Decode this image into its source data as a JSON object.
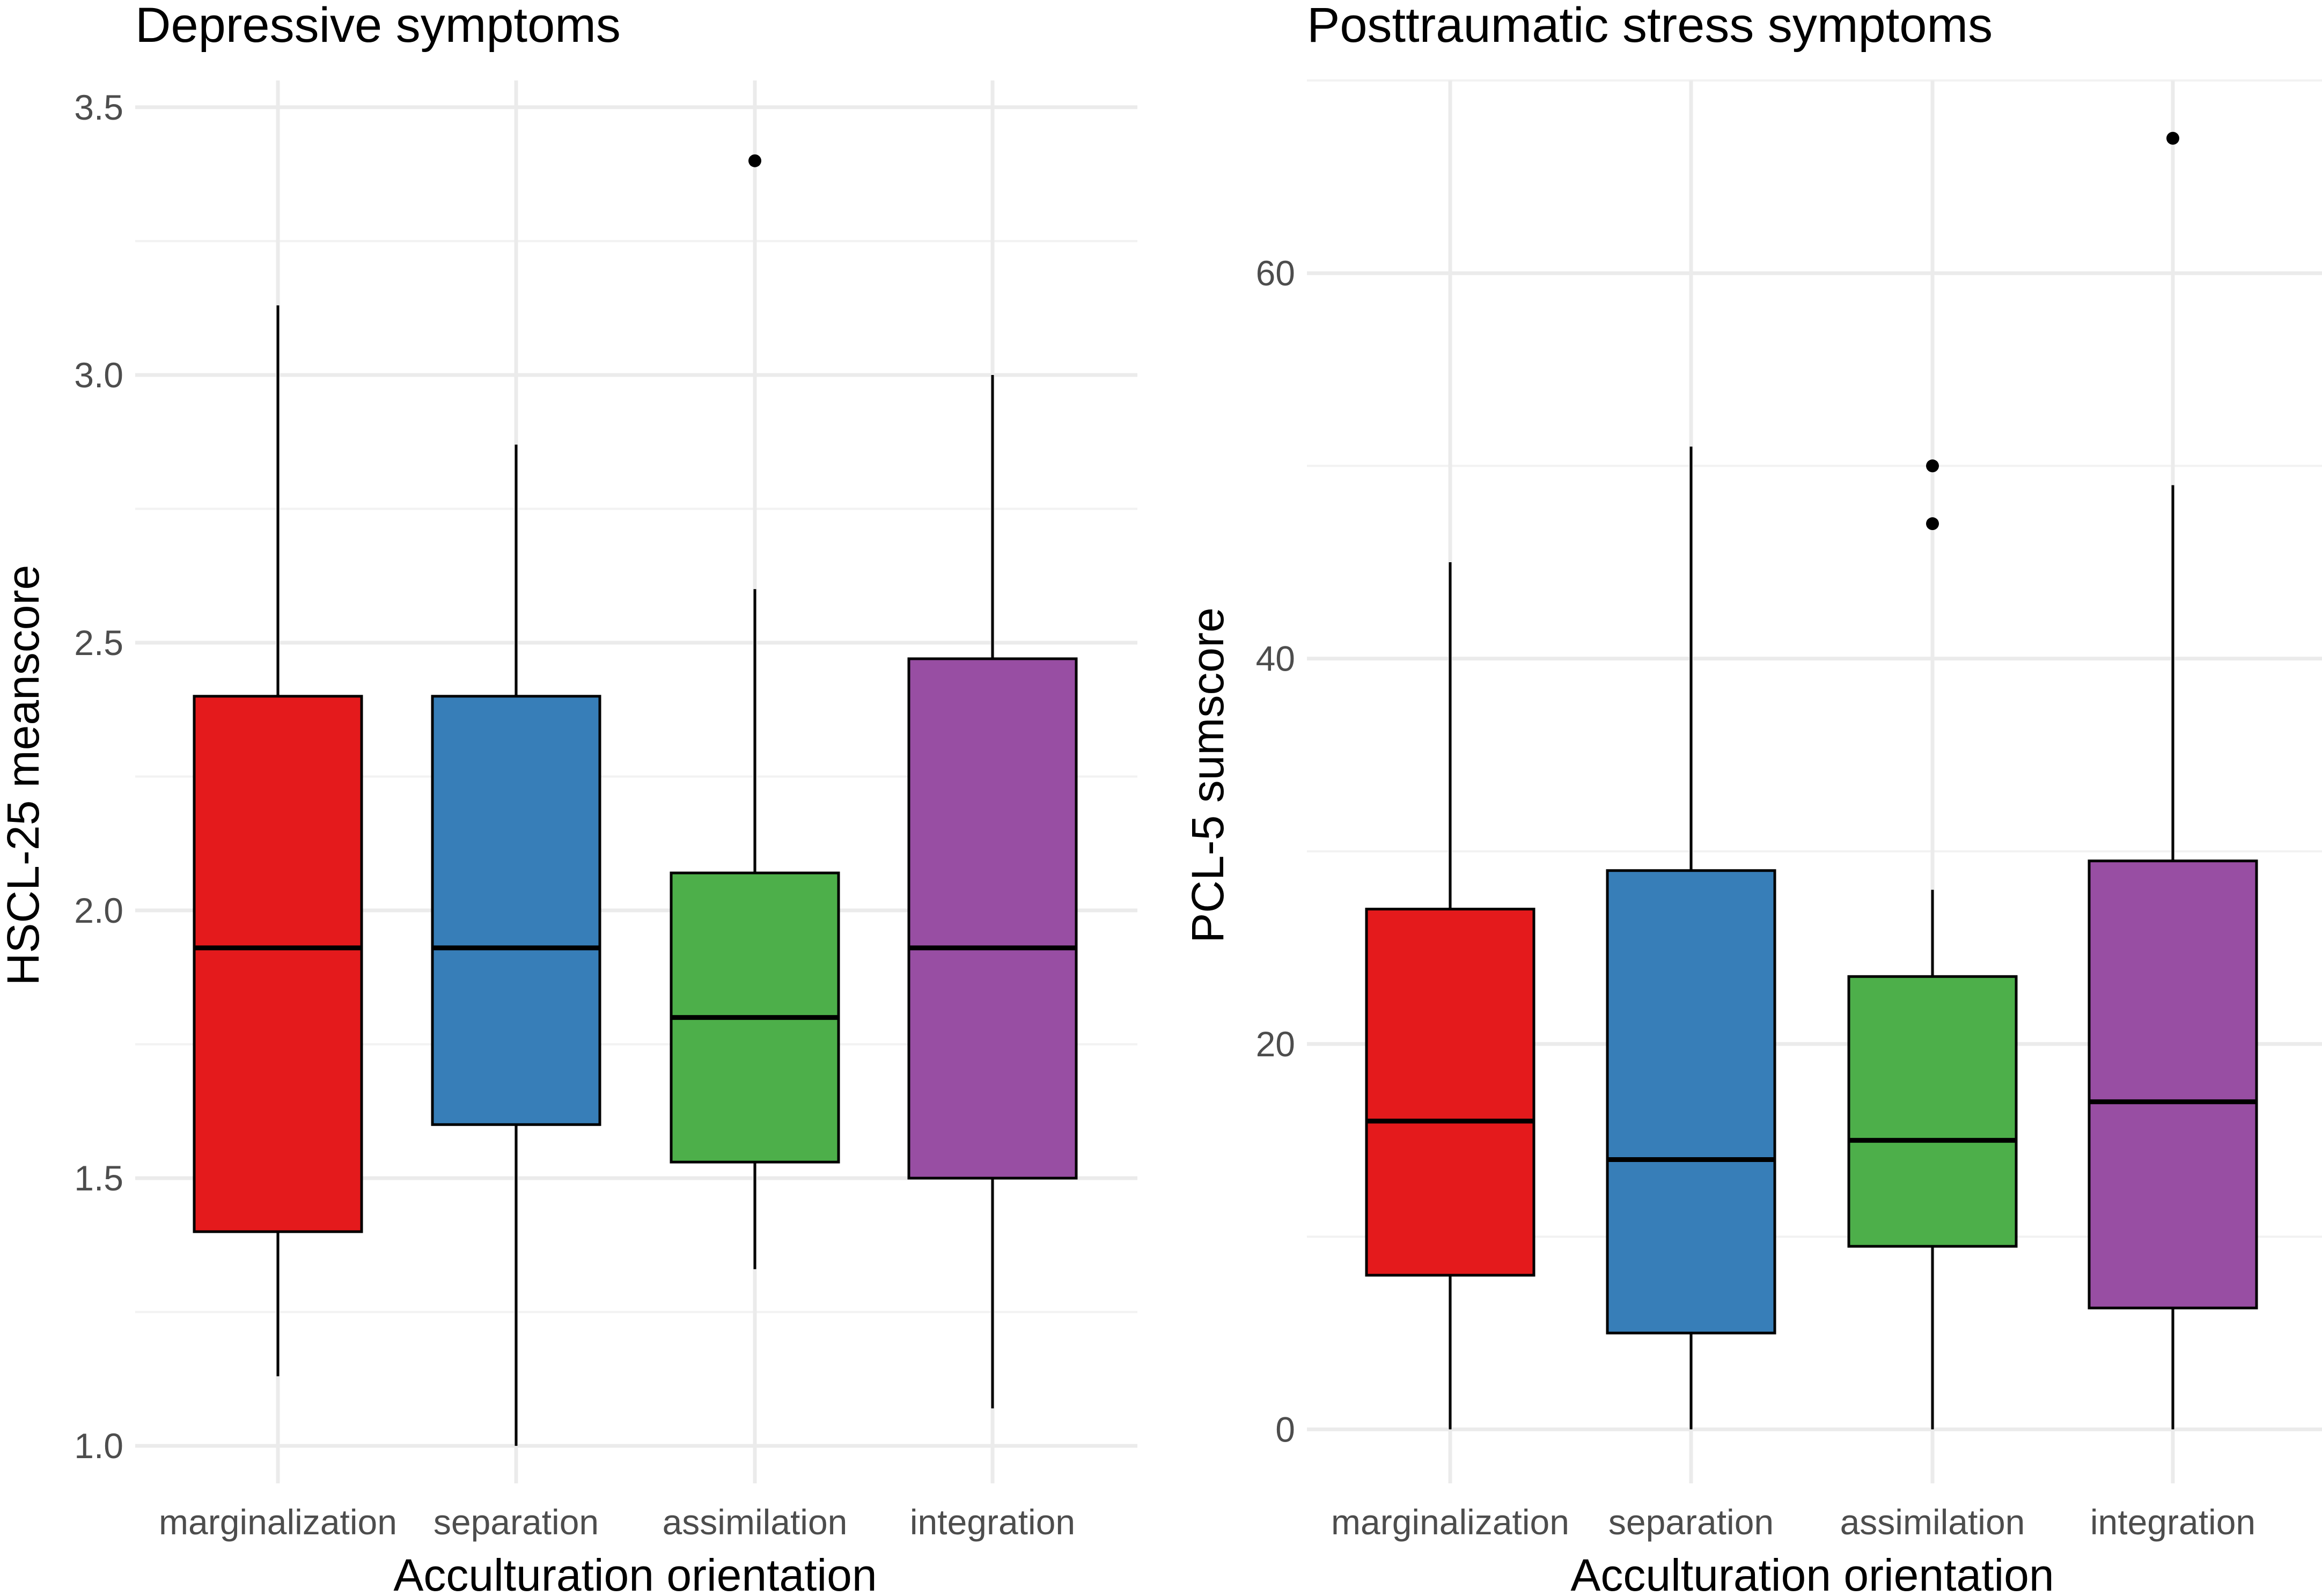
{
  "chart_data": [
    {
      "type": "boxplot",
      "title": "Depressive symptoms",
      "xlabel": "Acculturation orientation",
      "ylabel": "HSCL-25 meanscore",
      "categories": [
        "marginalization",
        "separation",
        "assimilation",
        "integration"
      ],
      "ylim": [
        0.93,
        3.55
      ],
      "yticks": [
        1.0,
        1.5,
        2.0,
        2.5,
        3.0,
        3.5
      ],
      "ytick_labels": [
        "1.0",
        "1.5",
        "2.0",
        "2.5",
        "3.0",
        "3.5"
      ],
      "yminor": [
        1.25,
        1.75,
        2.25,
        2.75,
        3.25
      ],
      "boxes": [
        {
          "group": "marginalization",
          "min": 1.13,
          "q1": 1.4,
          "median": 1.93,
          "q3": 2.4,
          "max": 3.13,
          "outliers": [],
          "color": "#e41a1c"
        },
        {
          "group": "separation",
          "min": 1.0,
          "q1": 1.6,
          "median": 1.93,
          "q3": 2.4,
          "max": 2.87,
          "outliers": [],
          "color": "#377eb8"
        },
        {
          "group": "assimilation",
          "min": 1.33,
          "q1": 1.53,
          "median": 1.8,
          "q3": 2.07,
          "max": 2.6,
          "outliers": [
            3.4
          ],
          "color": "#4daf4a"
        },
        {
          "group": "integration",
          "min": 1.07,
          "q1": 1.5,
          "median": 1.93,
          "q3": 2.47,
          "max": 3.0,
          "outliers": [],
          "color": "#984ea3"
        }
      ]
    },
    {
      "type": "boxplot",
      "title": "Posttraumatic stress symptoms",
      "xlabel": "Acculturation orientation",
      "ylabel": "PCL-5 sumscore",
      "categories": [
        "marginalization",
        "separation",
        "assimilation",
        "integration"
      ],
      "ylim": [
        -2.8,
        70
      ],
      "yticks": [
        0,
        20,
        40,
        60
      ],
      "ytick_labels": [
        "0",
        "20",
        "40",
        "60"
      ],
      "yminor": [
        10,
        30,
        50,
        70
      ],
      "boxes": [
        {
          "group": "marginalization",
          "min": 0,
          "q1": 8,
          "median": 16,
          "q3": 27,
          "max": 45,
          "outliers": [],
          "color": "#e41a1c"
        },
        {
          "group": "separation",
          "min": 0,
          "q1": 5,
          "median": 14,
          "q3": 29,
          "max": 51,
          "outliers": [],
          "color": "#377eb8"
        },
        {
          "group": "assimilation",
          "min": 0,
          "q1": 9.5,
          "median": 15,
          "q3": 23.5,
          "max": 28,
          "outliers": [
            50,
            47
          ],
          "color": "#4daf4a"
        },
        {
          "group": "integration",
          "min": 0,
          "q1": 6.3,
          "median": 17,
          "q3": 29.5,
          "max": 49,
          "outliers": [
            67
          ],
          "color": "#984ea3"
        }
      ]
    }
  ]
}
